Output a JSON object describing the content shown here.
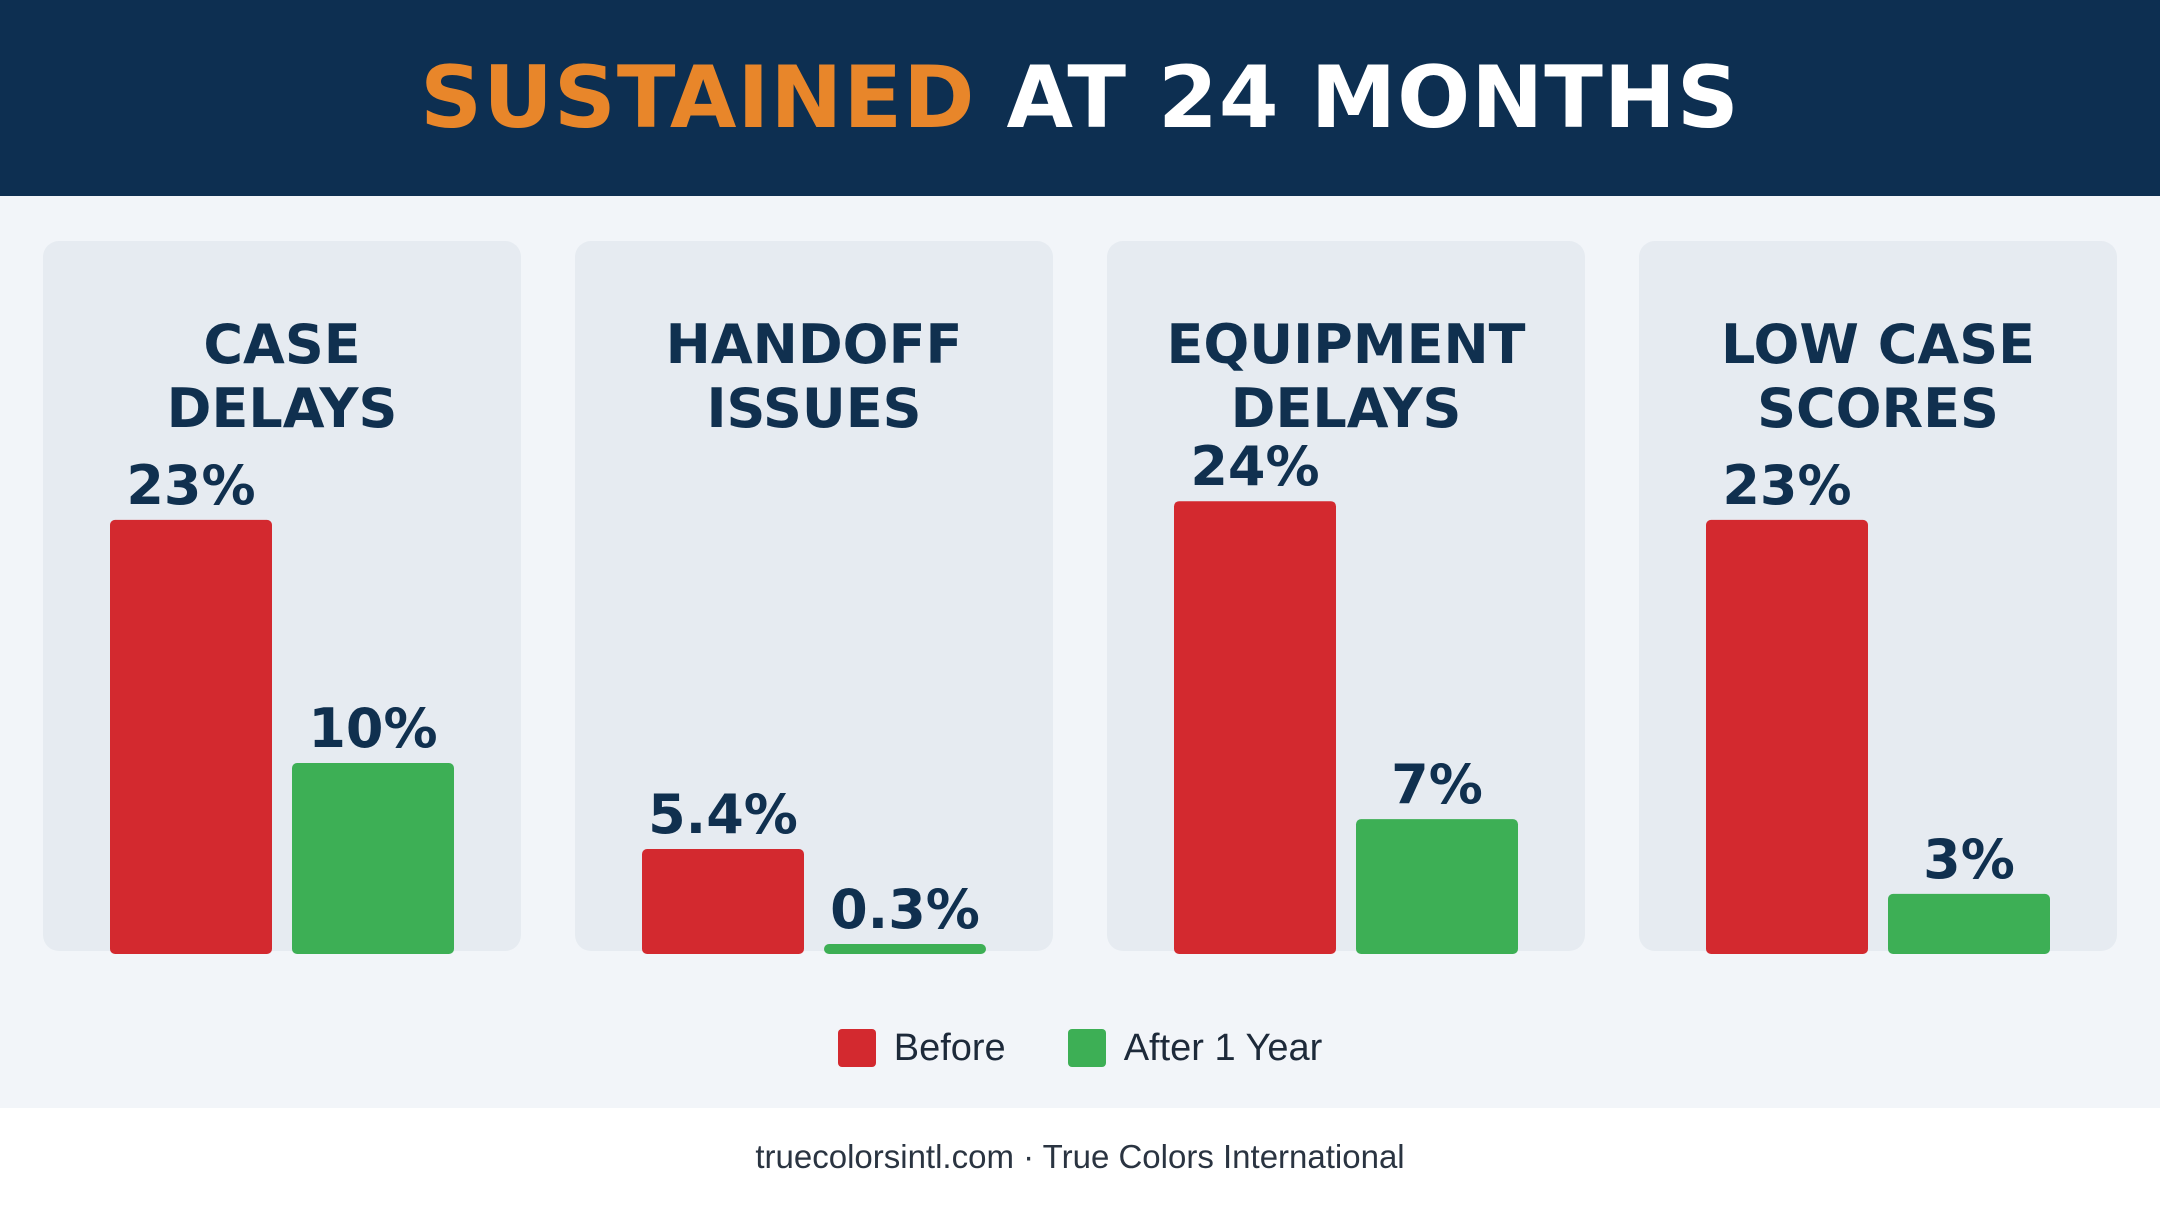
{
  "header": {
    "title_accent": "SUSTAINED",
    "title_rest": "AT 24 MONTHS"
  },
  "colors": {
    "header_bg": "#0d2f51",
    "accent": "#e8862a",
    "before": "#d3292f",
    "after": "#3daf55"
  },
  "chart_data": {
    "type": "bar",
    "title": "SUSTAINED AT 24 MONTHS",
    "categories": [
      "CASE\nDELAYS",
      "HANDOFF\nISSUES",
      "EQUIPMENT\nDELAYS",
      "LOW CASE\nSCORES"
    ],
    "series": [
      {
        "name": "Before",
        "values": [
          23,
          5.4,
          24,
          23
        ],
        "labels": [
          "23%",
          "5.4%",
          "24%",
          "23%"
        ],
        "color": "#d3292f"
      },
      {
        "name": "After 1 Year",
        "values": [
          10,
          0.3,
          7,
          3
        ],
        "labels": [
          "10%",
          "0.3%",
          "7%",
          "3%"
        ],
        "color": "#3daf55"
      }
    ],
    "unit": "%",
    "grid": false,
    "legend_position": "bottom-center"
  },
  "legend": [
    {
      "label": "Before",
      "color": "#d3292f"
    },
    {
      "label": "After 1 Year",
      "color": "#3daf55"
    }
  ],
  "footer": {
    "text": "truecolorsintl.com · True Colors International"
  }
}
